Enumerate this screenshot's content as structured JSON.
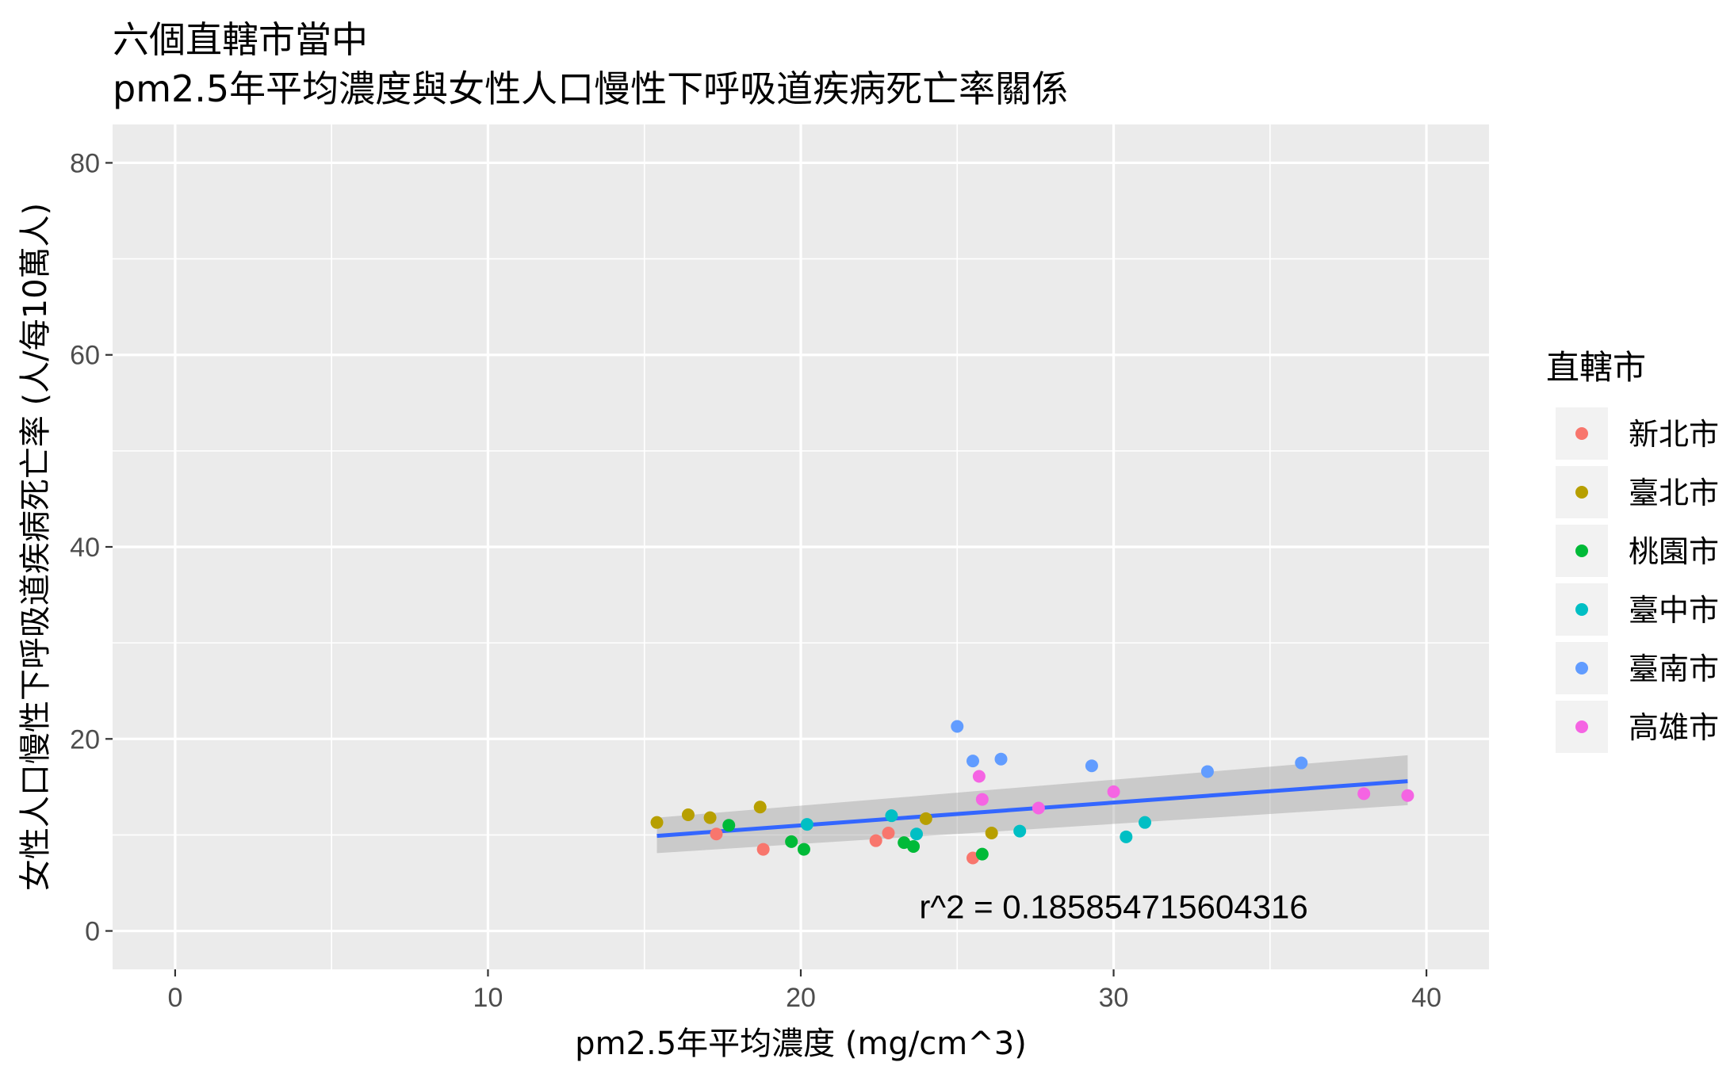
{
  "chart_data": {
    "type": "scatter",
    "title_line1": "六個直轄市當中",
    "title_line2": "pm2.5年平均濃度與女性人口慢性下呼吸道疾病死亡率關係",
    "xlabel": "pm2.5年平均濃度 (mg/cm^3)",
    "ylabel": "女性人口慢性下呼吸道疾病死亡率 (人/每10萬人)",
    "xlim": [
      -2,
      42
    ],
    "ylim": [
      -4,
      84
    ],
    "xticks": [
      0,
      10,
      20,
      30,
      40
    ],
    "yticks": [
      0,
      20,
      40,
      60,
      80
    ],
    "grid": true,
    "legend": {
      "title": "直轄市",
      "position": "right"
    },
    "series": [
      {
        "name": "新北市",
        "color": "#F8766D",
        "points": [
          [
            17.3,
            10.1
          ],
          [
            18.8,
            8.5
          ],
          [
            22.4,
            9.4
          ],
          [
            22.8,
            10.2
          ],
          [
            25.5,
            7.6
          ]
        ]
      },
      {
        "name": "臺北市",
        "color": "#B79F00",
        "points": [
          [
            15.4,
            11.3
          ],
          [
            16.4,
            12.1
          ],
          [
            17.1,
            11.8
          ],
          [
            18.7,
            12.9
          ],
          [
            24.0,
            11.7
          ],
          [
            26.1,
            10.2
          ]
        ]
      },
      {
        "name": "桃園市",
        "color": "#00BA38",
        "points": [
          [
            17.7,
            11.0
          ],
          [
            19.7,
            9.3
          ],
          [
            20.1,
            8.5
          ],
          [
            23.3,
            9.2
          ],
          [
            23.6,
            8.8
          ],
          [
            25.8,
            8.0
          ]
        ]
      },
      {
        "name": "臺中市",
        "color": "#00BFC4",
        "points": [
          [
            20.2,
            11.1
          ],
          [
            22.9,
            12.0
          ],
          [
            23.7,
            10.1
          ],
          [
            27.0,
            10.4
          ],
          [
            30.4,
            9.8
          ],
          [
            31.0,
            11.3
          ]
        ]
      },
      {
        "name": "臺南市",
        "color": "#619CFF",
        "points": [
          [
            25.0,
            21.3
          ],
          [
            25.5,
            17.7
          ],
          [
            26.4,
            17.9
          ],
          [
            29.3,
            17.2
          ],
          [
            33.0,
            16.6
          ],
          [
            36.0,
            17.5
          ]
        ]
      },
      {
        "name": "高雄市",
        "color": "#F564E3",
        "points": [
          [
            25.7,
            16.1
          ],
          [
            25.8,
            13.7
          ],
          [
            27.6,
            12.8
          ],
          [
            30.0,
            14.5
          ],
          [
            38.0,
            14.3
          ],
          [
            39.4,
            14.1
          ]
        ]
      }
    ],
    "trend": {
      "color": "#3366FF",
      "band_color": "#999999",
      "x": [
        15.4,
        39.4
      ],
      "y": [
        9.9,
        15.6
      ],
      "band_lower": [
        8.1,
        13.1
      ],
      "band_upper": [
        11.8,
        18.3
      ]
    },
    "annotation": {
      "text": "r^2 = 0.185854715604316",
      "x": 30.0,
      "y": 2.5
    }
  }
}
